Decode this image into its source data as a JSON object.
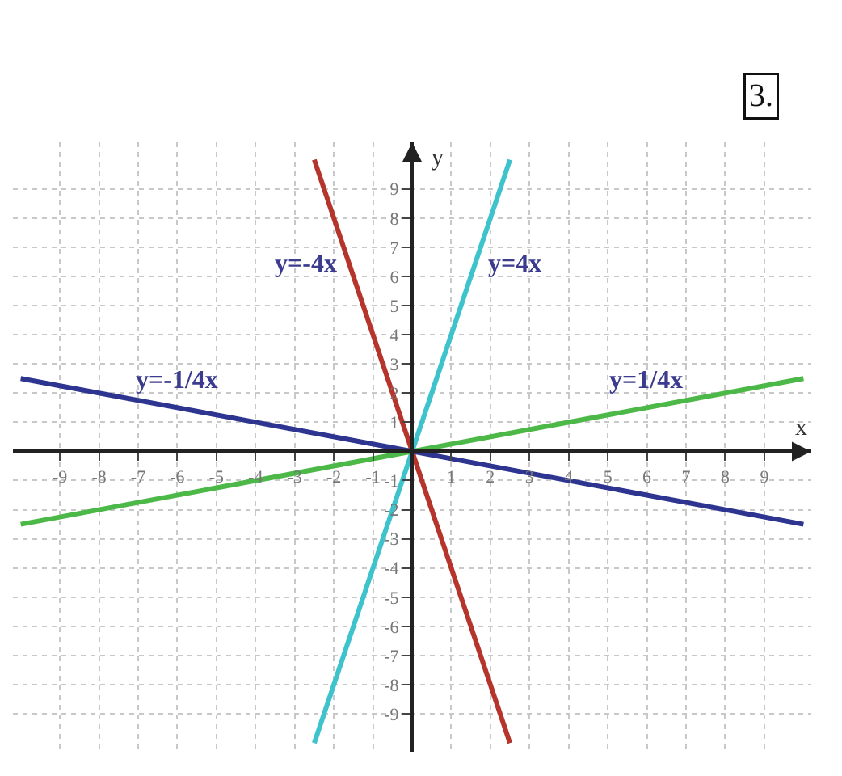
{
  "chart_data": {
    "type": "line",
    "xlabel": "x",
    "ylabel": "y",
    "xlim": [
      -10.2,
      10.2
    ],
    "ylim": [
      -10.3,
      10.6
    ],
    "xticks": [
      -9,
      -8,
      -7,
      -6,
      -5,
      -4,
      -3,
      -2,
      -1,
      1,
      2,
      3,
      4,
      5,
      6,
      7,
      8,
      9
    ],
    "yticks": [
      -9,
      -8,
      -7,
      -6,
      -5,
      -4,
      -3,
      -2,
      -1,
      1,
      2,
      3,
      4,
      5,
      6,
      7,
      8,
      9
    ],
    "grid": true,
    "line_style": "solid",
    "marker": "none",
    "annotations": [
      "3."
    ],
    "series": [
      {
        "name": "y=-4x",
        "color": "#b5352c",
        "x": [
          -2.5,
          2.5
        ],
        "values": [
          10,
          -10
        ]
      },
      {
        "name": "y=4x",
        "color": "#3ec3cc",
        "x": [
          -2.5,
          2.5
        ],
        "values": [
          -10,
          10
        ]
      },
      {
        "name": "y=-1/4x",
        "color": "#2e3590",
        "x": [
          -10,
          10
        ],
        "values": [
          2.5,
          -2.5
        ]
      },
      {
        "name": "y=1/4x",
        "color": "#4cb847",
        "x": [
          -10,
          10
        ],
        "values": [
          -2.5,
          2.5
        ]
      }
    ]
  }
}
